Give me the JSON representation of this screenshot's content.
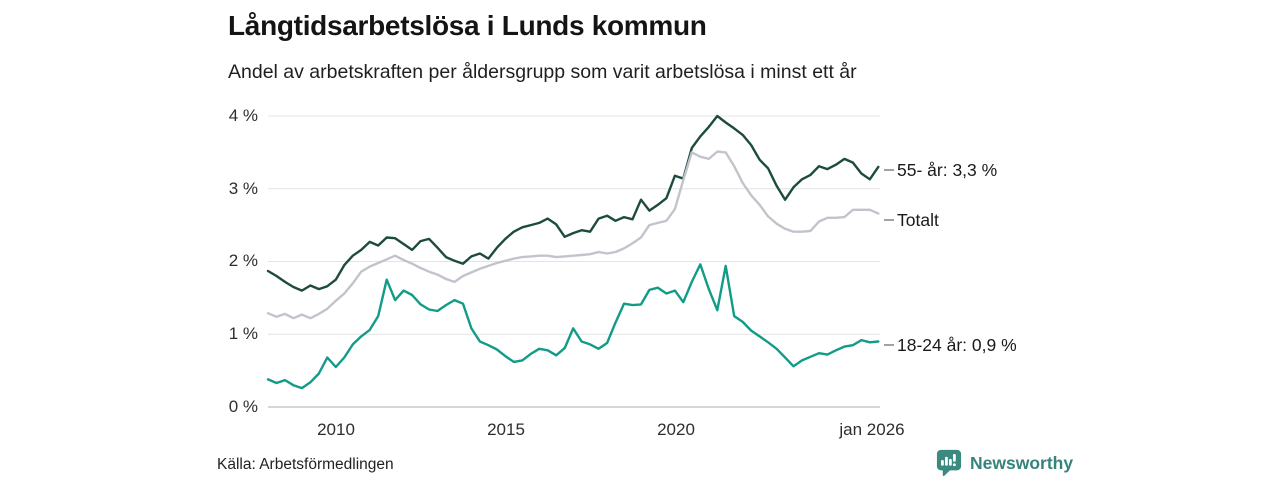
{
  "header": {
    "title": "Långtidsarbetslösa i Lunds kommun",
    "subtitle": "Andel av arbetskraften per åldersgrupp som varit arbetslösa i minst ett år"
  },
  "footer": {
    "source": "Källa: Arbetsförmedlingen",
    "brand": "Newsworthy"
  },
  "colors": {
    "series_55": "#1e4b3f",
    "series_total": "#c4c3cc",
    "series_young": "#129b86",
    "gridline": "#e4e4e4",
    "baseline": "#c9c9c9",
    "connector": "#8a8a8a",
    "brand_teal": "#3a8a80"
  },
  "chart_data": {
    "type": "line",
    "title": "Långtidsarbetslösa i Lunds kommun",
    "subtitle": "Andel av arbetskraften per åldersgrupp som varit arbetslösa i minst ett år",
    "xlabel": "",
    "ylabel": "",
    "grid": "horizontal",
    "legend_position": "right-edge-labels",
    "y_axis": {
      "unit": "%",
      "range": [
        0,
        4
      ],
      "ticks": [
        {
          "value": 4,
          "label": "4 %"
        },
        {
          "value": 3,
          "label": "3 %"
        },
        {
          "value": 2,
          "label": "2 %"
        },
        {
          "value": 1,
          "label": "1 %"
        },
        {
          "value": 0,
          "label": "0 %"
        }
      ]
    },
    "x_axis": {
      "range": [
        2008.0,
        2026.05
      ],
      "ticks": [
        {
          "value": 2010,
          "label": "2010"
        },
        {
          "value": 2015,
          "label": "2015"
        },
        {
          "value": 2020,
          "label": "2020"
        },
        {
          "value": 2026,
          "label": "jan 2026"
        }
      ]
    },
    "x": [
      2008.0,
      2008.25,
      2008.5,
      2008.75,
      2009.0,
      2009.25,
      2009.5,
      2009.75,
      2010.0,
      2010.25,
      2010.5,
      2010.75,
      2011.0,
      2011.25,
      2011.5,
      2011.75,
      2012.0,
      2012.25,
      2012.5,
      2012.75,
      2013.0,
      2013.25,
      2013.5,
      2013.75,
      2014.0,
      2014.25,
      2014.5,
      2014.75,
      2015.0,
      2015.25,
      2015.5,
      2015.75,
      2016.0,
      2016.25,
      2016.5,
      2016.75,
      2017.0,
      2017.25,
      2017.5,
      2017.75,
      2018.0,
      2018.25,
      2018.5,
      2018.75,
      2019.0,
      2019.25,
      2019.5,
      2019.75,
      2020.0,
      2020.25,
      2020.5,
      2020.75,
      2021.0,
      2021.25,
      2021.5,
      2021.75,
      2022.0,
      2022.25,
      2022.5,
      2022.75,
      2023.0,
      2023.25,
      2023.5,
      2023.75,
      2024.0,
      2024.25,
      2024.5,
      2024.75,
      2025.0,
      2025.25,
      2025.5,
      2025.75,
      2026.0
    ],
    "series": [
      {
        "name": "55- år",
        "end_label": "55- år: 3,3 %",
        "end_value": 3.3,
        "color": "#1e4b3f",
        "values": [
          1.87,
          1.8,
          1.72,
          1.65,
          1.6,
          1.67,
          1.62,
          1.66,
          1.75,
          1.95,
          2.08,
          2.16,
          2.27,
          2.22,
          2.33,
          2.32,
          2.24,
          2.16,
          2.28,
          2.31,
          2.19,
          2.06,
          2.01,
          1.97,
          2.07,
          2.11,
          2.04,
          2.19,
          2.31,
          2.41,
          2.47,
          2.5,
          2.53,
          2.59,
          2.51,
          2.34,
          2.39,
          2.43,
          2.41,
          2.59,
          2.63,
          2.56,
          2.61,
          2.58,
          2.85,
          2.7,
          2.78,
          2.87,
          3.18,
          3.14,
          3.56,
          3.72,
          3.85,
          4.0,
          3.91,
          3.83,
          3.74,
          3.6,
          3.4,
          3.28,
          3.04,
          2.85,
          3.02,
          3.13,
          3.19,
          3.31,
          3.27,
          3.33,
          3.41,
          3.36,
          3.21,
          3.13,
          3.3
        ]
      },
      {
        "name": "Totalt",
        "end_label": "Totalt",
        "end_value": 2.7,
        "color": "#c4c3cc",
        "values": [
          1.29,
          1.24,
          1.28,
          1.22,
          1.27,
          1.22,
          1.28,
          1.35,
          1.46,
          1.56,
          1.7,
          1.86,
          1.93,
          1.98,
          2.03,
          2.08,
          2.02,
          1.97,
          1.91,
          1.86,
          1.82,
          1.76,
          1.72,
          1.8,
          1.85,
          1.9,
          1.94,
          1.98,
          2.01,
          2.04,
          2.06,
          2.07,
          2.08,
          2.08,
          2.06,
          2.07,
          2.08,
          2.09,
          2.1,
          2.13,
          2.11,
          2.13,
          2.18,
          2.25,
          2.33,
          2.5,
          2.53,
          2.56,
          2.72,
          3.12,
          3.5,
          3.44,
          3.41,
          3.51,
          3.5,
          3.31,
          3.08,
          2.91,
          2.78,
          2.62,
          2.52,
          2.45,
          2.41,
          2.41,
          2.42,
          2.55,
          2.6,
          2.6,
          2.61,
          2.71,
          2.71,
          2.71,
          2.66
        ]
      },
      {
        "name": "18-24 år",
        "end_label": "18-24 år: 0,9 %",
        "end_value": 0.9,
        "color": "#129b86",
        "values": [
          0.38,
          0.33,
          0.37,
          0.3,
          0.26,
          0.34,
          0.46,
          0.68,
          0.55,
          0.68,
          0.86,
          0.97,
          1.06,
          1.25,
          1.75,
          1.47,
          1.6,
          1.54,
          1.41,
          1.34,
          1.32,
          1.4,
          1.47,
          1.42,
          1.08,
          0.9,
          0.85,
          0.79,
          0.7,
          0.62,
          0.64,
          0.73,
          0.8,
          0.78,
          0.71,
          0.81,
          1.08,
          0.9,
          0.86,
          0.8,
          0.88,
          1.16,
          1.42,
          1.4,
          1.41,
          1.61,
          1.64,
          1.56,
          1.6,
          1.44,
          1.72,
          1.96,
          1.62,
          1.33,
          1.94,
          1.25,
          1.17,
          1.05,
          0.97,
          0.89,
          0.8,
          0.68,
          0.56,
          0.64,
          0.69,
          0.74,
          0.72,
          0.78,
          0.83,
          0.85,
          0.92,
          0.89,
          0.9
        ]
      }
    ]
  }
}
